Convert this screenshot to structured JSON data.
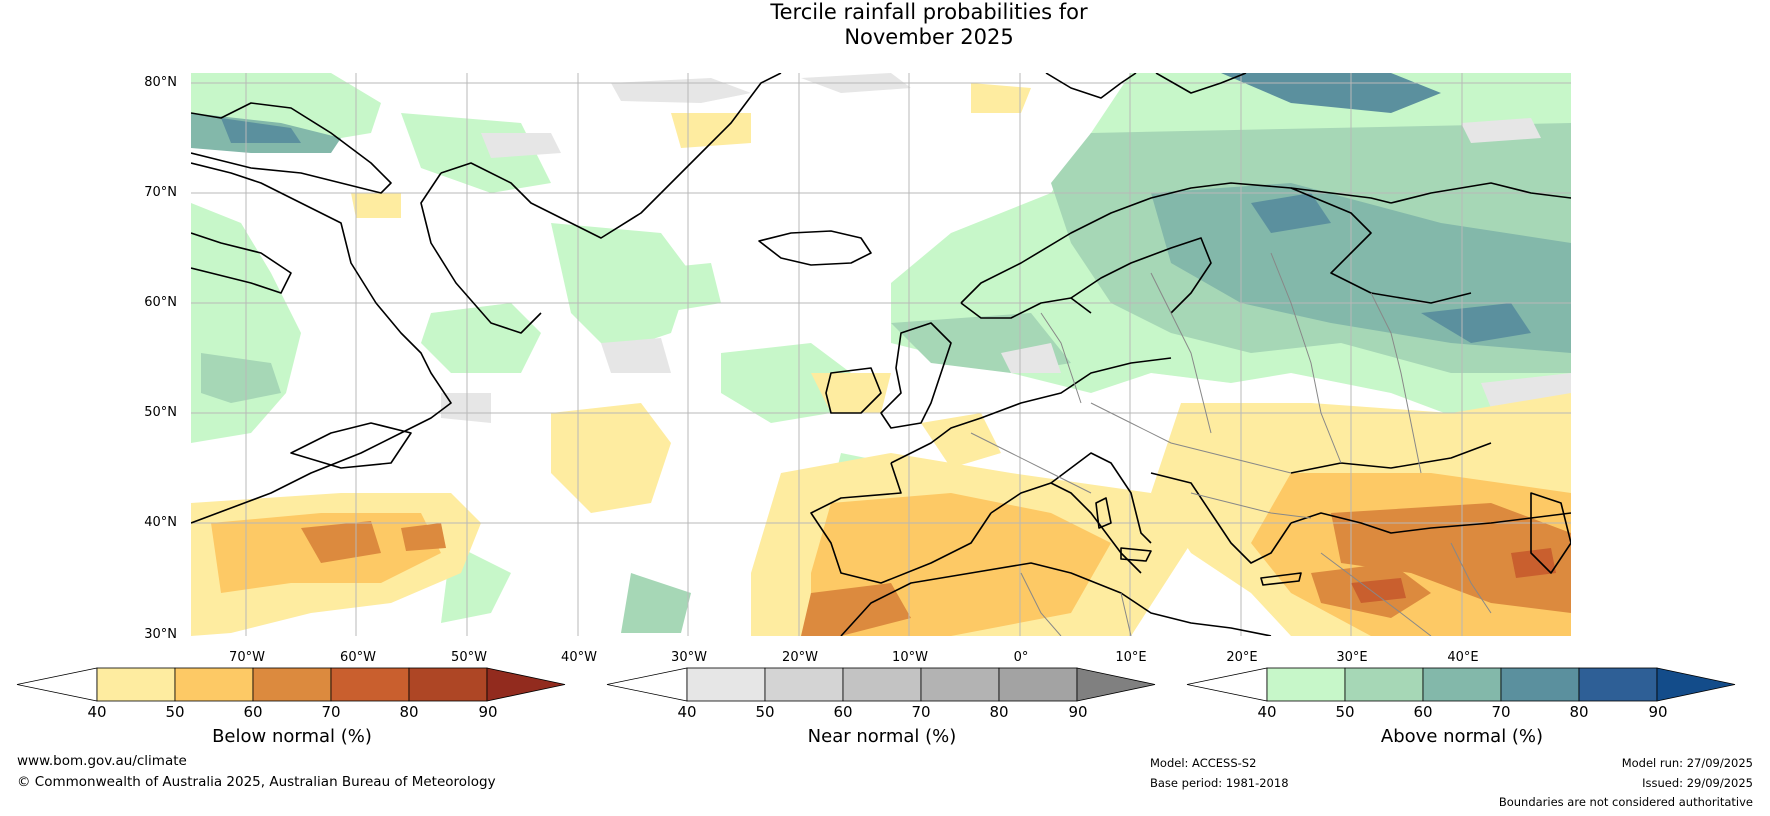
{
  "title": {
    "line1": "Tercile rainfall probabilities for",
    "line2": "November 2025"
  },
  "map": {
    "lat_labels": [
      "80°N",
      "70°N",
      "60°N",
      "50°N",
      "40°N",
      "30°N"
    ],
    "lon_labels": [
      "70°W",
      "60°W",
      "50°W",
      "40°W",
      "30°W",
      "20°W",
      "10°W",
      "0°",
      "10°E",
      "20°E",
      "30°E",
      "40°E"
    ],
    "colors": {
      "land_border": "#000000",
      "country_border": "#888888",
      "grid": "#b8b8b8"
    }
  },
  "colorbars": [
    {
      "name": "below",
      "label": "Below normal (%)",
      "ticks": [
        "40",
        "50",
        "60",
        "70",
        "80",
        "90"
      ],
      "colors": [
        "#ffffff",
        "#feeca0",
        "#fdc965",
        "#dc8a3e",
        "#c95f2e",
        "#ae4625",
        "#922b1e"
      ]
    },
    {
      "name": "near",
      "label": "Near normal (%)",
      "ticks": [
        "40",
        "50",
        "60",
        "70",
        "80",
        "90"
      ],
      "colors": [
        "#ffffff",
        "#e6e6e6",
        "#d4d4d4",
        "#c3c3c3",
        "#b3b3b3",
        "#a3a3a3",
        "#808080"
      ]
    },
    {
      "name": "above",
      "label": "Above normal (%)",
      "ticks": [
        "40",
        "50",
        "60",
        "70",
        "80",
        "90"
      ],
      "colors": [
        "#ffffff",
        "#c7f7c9",
        "#a6d7b6",
        "#83b8aa",
        "#5b909e",
        "#2e5f96",
        "#134c8a"
      ]
    }
  ],
  "footer": {
    "website": "www.bom.gov.au/climate",
    "copyright": "© Commonwealth of Australia 2025, Australian Bureau of Meteorology",
    "model": "Model: ACCESS-S2",
    "base_period": "Base period: 1981-2018",
    "model_run": "Model run: 27/09/2025",
    "issued": "Issued: 29/09/2025",
    "disclaimer": "Boundaries are not considered authoritative"
  }
}
